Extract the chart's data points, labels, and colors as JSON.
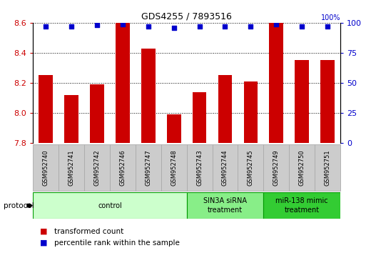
{
  "title": "GDS4255 / 7893516",
  "samples": [
    "GSM952740",
    "GSM952741",
    "GSM952742",
    "GSM952746",
    "GSM952747",
    "GSM952748",
    "GSM952743",
    "GSM952744",
    "GSM952745",
    "GSM952749",
    "GSM952750",
    "GSM952751"
  ],
  "bar_values": [
    8.25,
    8.12,
    8.19,
    8.6,
    8.43,
    7.99,
    8.14,
    8.25,
    8.21,
    8.6,
    8.35,
    8.35
  ],
  "percentile_values": [
    97,
    97,
    98,
    99,
    97,
    96,
    97,
    97,
    97,
    99,
    97,
    97
  ],
  "bar_color": "#cc0000",
  "dot_color": "#0000cc",
  "y_min": 7.8,
  "y_max": 8.6,
  "y_ticks_left": [
    7.8,
    8.0,
    8.2,
    8.4,
    8.6
  ],
  "y_ticks_right": [
    0,
    25,
    50,
    75,
    100
  ],
  "groups": [
    {
      "label": "control",
      "start": 0,
      "end": 6,
      "color": "#ccffcc",
      "border_color": "#009900"
    },
    {
      "label": "SIN3A siRNA\ntreatment",
      "start": 6,
      "end": 9,
      "color": "#88ee88",
      "border_color": "#009900"
    },
    {
      "label": "miR-138 mimic\ntreatment",
      "start": 9,
      "end": 12,
      "color": "#33cc33",
      "border_color": "#009900"
    }
  ],
  "protocol_label": "protocol",
  "legend_red": "transformed count",
  "legend_blue": "percentile rank within the sample",
  "bg_color": "#ffffff",
  "tick_label_color_left": "#cc0000",
  "tick_label_color_right": "#0000cc",
  "sample_box_color": "#cccccc",
  "sample_box_edge": "#aaaaaa"
}
